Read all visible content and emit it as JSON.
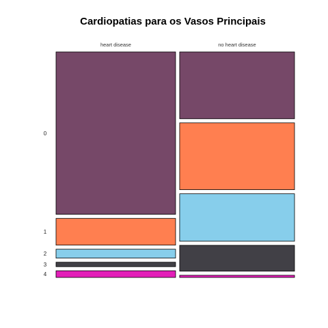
{
  "chart_data": {
    "type": "mosaic",
    "title": "Cardiopatias para os Vasos Principais",
    "columns": [
      "heart disease",
      "no heart disease"
    ],
    "rows": [
      "0",
      "1",
      "2",
      "3",
      "4"
    ],
    "proportions": {
      "heart disease": [
        0.73,
        0.12,
        0.04,
        0.02,
        0.03
      ],
      "no heart disease": [
        0.31,
        0.31,
        0.22,
        0.12,
        0.01
      ]
    },
    "column_widths": [
      0.51,
      0.49
    ],
    "colors": [
      "#764868",
      "#ff7f50",
      "#87ceeb",
      "#414046",
      "#e31fb8"
    ]
  }
}
